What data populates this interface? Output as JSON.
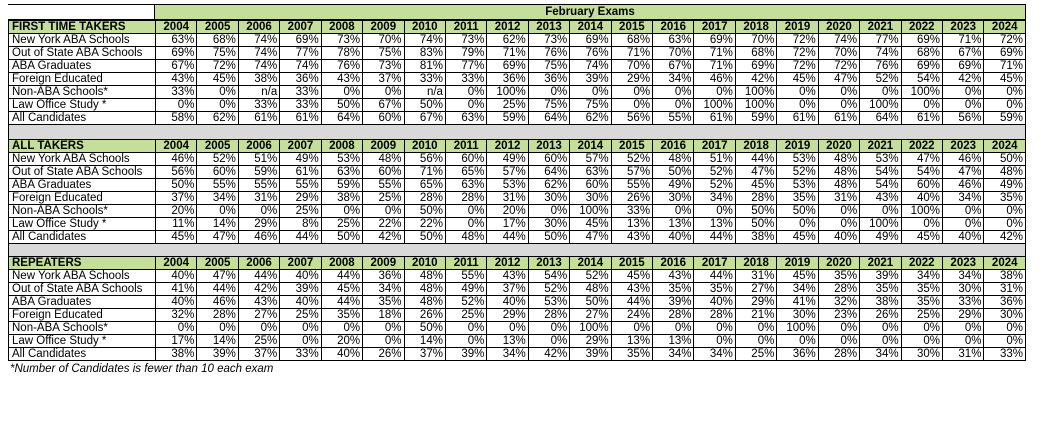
{
  "caption": "February Exams",
  "years": [
    "2004",
    "2005",
    "2006",
    "2007",
    "2008",
    "2009",
    "2010",
    "2011",
    "2012",
    "2013",
    "2014",
    "2015",
    "2016",
    "2017",
    "2018",
    "2019",
    "2020",
    "2021",
    "2022",
    "2023",
    "2024"
  ],
  "sections": [
    {
      "title": "FIRST TIME TAKERS",
      "rows": [
        {
          "label": "New York ABA Schools",
          "values": [
            "63%",
            "68%",
            "74%",
            "69%",
            "73%",
            "70%",
            "74%",
            "73%",
            "62%",
            "73%",
            "69%",
            "68%",
            "63%",
            "69%",
            "70%",
            "72%",
            "74%",
            "77%",
            "69%",
            "71%",
            "72%"
          ]
        },
        {
          "label": "Out of State ABA Schools",
          "values": [
            "69%",
            "75%",
            "74%",
            "77%",
            "78%",
            "75%",
            "83%",
            "79%",
            "71%",
            "76%",
            "76%",
            "71%",
            "70%",
            "71%",
            "68%",
            "72%",
            "70%",
            "74%",
            "68%",
            "67%",
            "69%"
          ]
        },
        {
          "label": "ABA Graduates",
          "values": [
            "67%",
            "72%",
            "74%",
            "74%",
            "76%",
            "73%",
            "81%",
            "77%",
            "69%",
            "75%",
            "74%",
            "70%",
            "67%",
            "71%",
            "69%",
            "72%",
            "72%",
            "76%",
            "69%",
            "69%",
            "71%"
          ]
        },
        {
          "label": "Foreign Educated",
          "values": [
            "43%",
            "45%",
            "38%",
            "36%",
            "43%",
            "37%",
            "33%",
            "33%",
            "36%",
            "36%",
            "39%",
            "29%",
            "34%",
            "46%",
            "42%",
            "45%",
            "47%",
            "52%",
            "54%",
            "42%",
            "45%"
          ]
        },
        {
          "label": "Non-ABA Schools*",
          "values": [
            "33%",
            "0%",
            "n/a",
            "33%",
            "0%",
            "0%",
            "n/a",
            "0%",
            "100%",
            "0%",
            "0%",
            "0%",
            "0%",
            "0%",
            "100%",
            "0%",
            "0%",
            "0%",
            "100%",
            "0%",
            "0%"
          ]
        },
        {
          "label": "Law Office Study *",
          "values": [
            "0%",
            "0%",
            "33%",
            "33%",
            "50%",
            "67%",
            "50%",
            "0%",
            "25%",
            "75%",
            "75%",
            "0%",
            "0%",
            "100%",
            "100%",
            "0%",
            "0%",
            "100%",
            "0%",
            "0%",
            "0%"
          ]
        },
        {
          "label": "All Candidates",
          "values": [
            "58%",
            "62%",
            "61%",
            "61%",
            "64%",
            "60%",
            "67%",
            "63%",
            "59%",
            "64%",
            "62%",
            "56%",
            "55%",
            "61%",
            "59%",
            "61%",
            "61%",
            "64%",
            "61%",
            "56%",
            "59%"
          ]
        }
      ]
    },
    {
      "title": "ALL TAKERS",
      "rows": [
        {
          "label": "New York ABA Schools",
          "values": [
            "46%",
            "52%",
            "51%",
            "49%",
            "53%",
            "48%",
            "56%",
            "60%",
            "49%",
            "60%",
            "57%",
            "52%",
            "48%",
            "51%",
            "44%",
            "53%",
            "48%",
            "53%",
            "47%",
            "46%",
            "50%"
          ]
        },
        {
          "label": "Out of State ABA Schools",
          "values": [
            "56%",
            "60%",
            "59%",
            "61%",
            "63%",
            "60%",
            "71%",
            "65%",
            "57%",
            "64%",
            "63%",
            "57%",
            "50%",
            "52%",
            "47%",
            "52%",
            "48%",
            "54%",
            "54%",
            "47%",
            "48%"
          ]
        },
        {
          "label": "ABA Graduates",
          "values": [
            "50%",
            "55%",
            "55%",
            "55%",
            "59%",
            "55%",
            "65%",
            "63%",
            "53%",
            "62%",
            "60%",
            "55%",
            "49%",
            "52%",
            "45%",
            "53%",
            "48%",
            "54%",
            "60%",
            "46%",
            "49%"
          ]
        },
        {
          "label": "Foreign Educated",
          "values": [
            "37%",
            "34%",
            "31%",
            "29%",
            "38%",
            "25%",
            "28%",
            "28%",
            "31%",
            "30%",
            "30%",
            "26%",
            "30%",
            "34%",
            "28%",
            "35%",
            "31%",
            "43%",
            "40%",
            "34%",
            "35%"
          ]
        },
        {
          "label": "Non-ABA Schools*",
          "values": [
            "20%",
            "0%",
            "0%",
            "25%",
            "0%",
            "0%",
            "50%",
            "0%",
            "20%",
            "0%",
            "100%",
            "33%",
            "0%",
            "0%",
            "50%",
            "50%",
            "0%",
            "0%",
            "100%",
            "0%",
            "0%"
          ]
        },
        {
          "label": "Law Office Study *",
          "values": [
            "11%",
            "14%",
            "29%",
            "8%",
            "25%",
            "22%",
            "22%",
            "0%",
            "17%",
            "30%",
            "45%",
            "13%",
            "13%",
            "13%",
            "50%",
            "0%",
            "0%",
            "100%",
            "0%",
            "0%",
            "0%"
          ]
        },
        {
          "label": "All Candidates",
          "values": [
            "45%",
            "47%",
            "46%",
            "44%",
            "50%",
            "42%",
            "50%",
            "48%",
            "44%",
            "50%",
            "47%",
            "43%",
            "40%",
            "44%",
            "38%",
            "45%",
            "40%",
            "49%",
            "45%",
            "40%",
            "42%"
          ]
        }
      ]
    },
    {
      "title": "REPEATERS",
      "rows": [
        {
          "label": "New York ABA Schools",
          "values": [
            "40%",
            "47%",
            "44%",
            "40%",
            "44%",
            "36%",
            "48%",
            "55%",
            "43%",
            "54%",
            "52%",
            "45%",
            "43%",
            "44%",
            "31%",
            "45%",
            "35%",
            "39%",
            "34%",
            "34%",
            "38%"
          ]
        },
        {
          "label": "Out of State ABA Schools",
          "values": [
            "41%",
            "44%",
            "42%",
            "39%",
            "45%",
            "34%",
            "48%",
            "49%",
            "37%",
            "52%",
            "48%",
            "43%",
            "35%",
            "35%",
            "27%",
            "34%",
            "28%",
            "35%",
            "35%",
            "30%",
            "31%"
          ]
        },
        {
          "label": "ABA Graduates",
          "values": [
            "40%",
            "46%",
            "43%",
            "40%",
            "44%",
            "35%",
            "48%",
            "52%",
            "40%",
            "53%",
            "50%",
            "44%",
            "39%",
            "40%",
            "29%",
            "41%",
            "32%",
            "38%",
            "35%",
            "33%",
            "36%"
          ]
        },
        {
          "label": "Foreign Educated",
          "values": [
            "32%",
            "28%",
            "27%",
            "25%",
            "35%",
            "18%",
            "26%",
            "25%",
            "29%",
            "28%",
            "27%",
            "24%",
            "28%",
            "28%",
            "21%",
            "30%",
            "23%",
            "26%",
            "25%",
            "29%",
            "30%"
          ]
        },
        {
          "label": "Non-ABA Schools*",
          "values": [
            "0%",
            "0%",
            "0%",
            "0%",
            "0%",
            "0%",
            "50%",
            "0%",
            "0%",
            "0%",
            "100%",
            "0%",
            "0%",
            "0%",
            "0%",
            "100%",
            "0%",
            "0%",
            "0%",
            "0%",
            "0%"
          ]
        },
        {
          "label": "Law Office Study *",
          "values": [
            "17%",
            "14%",
            "25%",
            "0%",
            "20%",
            "0%",
            "14%",
            "0%",
            "13%",
            "0%",
            "29%",
            "13%",
            "13%",
            "0%",
            "0%",
            "0%",
            "0%",
            "0%",
            "0%",
            "0%",
            "0%"
          ]
        },
        {
          "label": "All Candidates",
          "values": [
            "38%",
            "39%",
            "37%",
            "33%",
            "40%",
            "26%",
            "37%",
            "39%",
            "34%",
            "42%",
            "39%",
            "35%",
            "34%",
            "34%",
            "25%",
            "36%",
            "28%",
            "34%",
            "30%",
            "31%",
            "33%"
          ]
        }
      ]
    }
  ],
  "footnote": "*Number of Candidates is fewer than 10 each exam"
}
